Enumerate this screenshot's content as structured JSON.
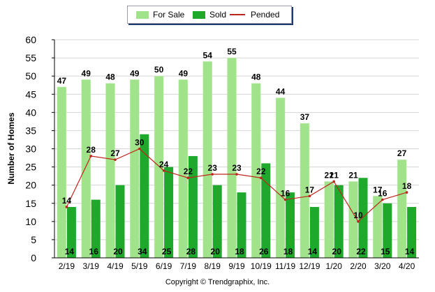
{
  "chart_data": {
    "type": "bar",
    "ylabel": "Number of Homes",
    "xlabel": "",
    "ylim": [
      0,
      60
    ],
    "yticks": [
      0,
      5,
      10,
      15,
      20,
      25,
      30,
      35,
      40,
      45,
      50,
      55,
      60
    ],
    "grid": true,
    "legend_position": "top-center",
    "categories": [
      "2/19",
      "3/19",
      "4/19",
      "5/19",
      "6/19",
      "7/19",
      "8/19",
      "9/19",
      "10/19",
      "11/19",
      "12/19",
      "1/20",
      "2/20",
      "3/20",
      "4/20"
    ],
    "series": [
      {
        "name": "For Sale",
        "kind": "bar",
        "color": "#a0e38a",
        "values": [
          47,
          49,
          48,
          49,
          50,
          49,
          54,
          55,
          48,
          44,
          37,
          21,
          21,
          17,
          27
        ]
      },
      {
        "name": "Sold",
        "kind": "bar",
        "color": "#1fa92c",
        "values": [
          14,
          16,
          20,
          34,
          25,
          28,
          20,
          18,
          26,
          18,
          14,
          20,
          22,
          15,
          14
        ]
      },
      {
        "name": "Pended",
        "kind": "line",
        "color": "#c0241d",
        "values": [
          14,
          28,
          27,
          30,
          24,
          22,
          23,
          23,
          22,
          16,
          17,
          21,
          10,
          16,
          18
        ]
      }
    ]
  },
  "legend": {
    "for_sale": "For Sale",
    "sold": "Sold",
    "pended": "Pended"
  },
  "copyright": "Copyright © Trendgraphix, Inc."
}
